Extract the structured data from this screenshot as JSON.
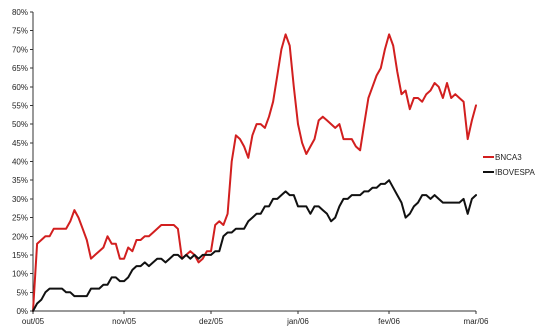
{
  "chart_data": {
    "type": "line",
    "title": "",
    "xlabel": "",
    "ylabel": "",
    "grid": false,
    "legend_position": "right",
    "ylim": [
      0,
      80
    ],
    "y_ticks": [
      "0%",
      "5%",
      "10%",
      "15%",
      "20%",
      "25%",
      "30%",
      "35%",
      "40%",
      "45%",
      "50%",
      "55%",
      "60%",
      "65%",
      "70%",
      "75%",
      "80%"
    ],
    "x_ticks": [
      {
        "label": "out/05",
        "x": 0
      },
      {
        "label": "nov/05",
        "x": 22
      },
      {
        "label": "dez/05",
        "x": 43
      },
      {
        "label": "jan/06",
        "x": 64
      },
      {
        "label": "fev/06",
        "x": 86
      },
      {
        "label": "mar/06",
        "x": 107
      }
    ],
    "xlim": [
      0,
      107
    ],
    "series": [
      {
        "name": "BNCA3",
        "color": "#d21f1f",
        "points": [
          [
            0,
            0
          ],
          [
            1,
            18
          ],
          [
            2,
            19
          ],
          [
            3,
            20
          ],
          [
            4,
            20
          ],
          [
            5,
            22
          ],
          [
            6,
            22
          ],
          [
            7,
            22
          ],
          [
            8,
            22
          ],
          [
            9,
            24
          ],
          [
            10,
            27
          ],
          [
            11,
            25
          ],
          [
            12,
            22
          ],
          [
            13,
            19
          ],
          [
            14,
            14
          ],
          [
            15,
            15
          ],
          [
            16,
            16
          ],
          [
            17,
            17
          ],
          [
            18,
            20
          ],
          [
            19,
            18
          ],
          [
            20,
            18
          ],
          [
            21,
            14
          ],
          [
            22,
            14
          ],
          [
            23,
            17
          ],
          [
            24,
            16
          ],
          [
            25,
            19
          ],
          [
            26,
            19
          ],
          [
            27,
            20
          ],
          [
            28,
            20
          ],
          [
            29,
            21
          ],
          [
            30,
            22
          ],
          [
            31,
            23
          ],
          [
            32,
            23
          ],
          [
            33,
            23
          ],
          [
            34,
            23
          ],
          [
            35,
            22
          ],
          [
            36,
            14
          ],
          [
            37,
            15
          ],
          [
            38,
            16
          ],
          [
            39,
            15
          ],
          [
            40,
            13
          ],
          [
            41,
            14
          ],
          [
            42,
            16
          ],
          [
            43,
            16
          ],
          [
            44,
            23
          ],
          [
            45,
            24
          ],
          [
            46,
            23
          ],
          [
            47,
            26
          ],
          [
            48,
            40
          ],
          [
            49,
            47
          ],
          [
            50,
            46
          ],
          [
            51,
            44
          ],
          [
            52,
            41
          ],
          [
            53,
            47
          ],
          [
            54,
            50
          ],
          [
            55,
            50
          ],
          [
            56,
            49
          ],
          [
            57,
            52
          ],
          [
            58,
            56
          ],
          [
            59,
            63
          ],
          [
            60,
            70
          ],
          [
            61,
            74
          ],
          [
            62,
            71
          ],
          [
            63,
            60
          ],
          [
            64,
            50
          ],
          [
            65,
            45
          ],
          [
            66,
            42
          ],
          [
            67,
            44
          ],
          [
            68,
            46
          ],
          [
            69,
            51
          ],
          [
            70,
            52
          ],
          [
            71,
            51
          ],
          [
            72,
            50
          ],
          [
            73,
            49
          ],
          [
            74,
            50
          ],
          [
            75,
            46
          ],
          [
            76,
            46
          ],
          [
            77,
            46
          ],
          [
            78,
            44
          ],
          [
            79,
            43
          ],
          [
            80,
            50
          ],
          [
            81,
            57
          ],
          [
            82,
            60
          ],
          [
            83,
            63
          ],
          [
            84,
            65
          ],
          [
            85,
            70
          ],
          [
            86,
            74
          ],
          [
            87,
            71
          ],
          [
            88,
            64
          ],
          [
            89,
            58
          ],
          [
            90,
            59
          ],
          [
            91,
            54
          ],
          [
            92,
            57
          ],
          [
            93,
            57
          ],
          [
            94,
            56
          ],
          [
            95,
            58
          ],
          [
            96,
            59
          ],
          [
            97,
            61
          ],
          [
            98,
            60
          ],
          [
            99,
            57
          ],
          [
            100,
            61
          ],
          [
            101,
            57
          ],
          [
            102,
            58
          ],
          [
            103,
            57
          ],
          [
            104,
            56
          ],
          [
            105,
            46
          ],
          [
            106,
            51
          ],
          [
            107,
            55
          ]
        ]
      },
      {
        "name": "IBOVESPA",
        "color": "#111111",
        "points": [
          [
            0,
            0
          ],
          [
            1,
            2
          ],
          [
            2,
            3
          ],
          [
            3,
            5
          ],
          [
            4,
            6
          ],
          [
            5,
            6
          ],
          [
            6,
            6
          ],
          [
            7,
            6
          ],
          [
            8,
            5
          ],
          [
            9,
            5
          ],
          [
            10,
            4
          ],
          [
            11,
            4
          ],
          [
            12,
            4
          ],
          [
            13,
            4
          ],
          [
            14,
            6
          ],
          [
            15,
            6
          ],
          [
            16,
            6
          ],
          [
            17,
            7
          ],
          [
            18,
            7
          ],
          [
            19,
            9
          ],
          [
            20,
            9
          ],
          [
            21,
            8
          ],
          [
            22,
            8
          ],
          [
            23,
            9
          ],
          [
            24,
            11
          ],
          [
            25,
            12
          ],
          [
            26,
            12
          ],
          [
            27,
            13
          ],
          [
            28,
            12
          ],
          [
            29,
            13
          ],
          [
            30,
            14
          ],
          [
            31,
            14
          ],
          [
            32,
            13
          ],
          [
            33,
            14
          ],
          [
            34,
            15
          ],
          [
            35,
            15
          ],
          [
            36,
            14
          ],
          [
            37,
            15
          ],
          [
            38,
            14
          ],
          [
            39,
            15
          ],
          [
            40,
            14
          ],
          [
            41,
            15
          ],
          [
            42,
            15
          ],
          [
            43,
            15
          ],
          [
            44,
            16
          ],
          [
            45,
            16
          ],
          [
            46,
            20
          ],
          [
            47,
            21
          ],
          [
            48,
            21
          ],
          [
            49,
            22
          ],
          [
            50,
            22
          ],
          [
            51,
            22
          ],
          [
            52,
            24
          ],
          [
            53,
            25
          ],
          [
            54,
            26
          ],
          [
            55,
            26
          ],
          [
            56,
            28
          ],
          [
            57,
            28
          ],
          [
            58,
            30
          ],
          [
            59,
            30
          ],
          [
            60,
            31
          ],
          [
            61,
            32
          ],
          [
            62,
            31
          ],
          [
            63,
            31
          ],
          [
            64,
            28
          ],
          [
            65,
            28
          ],
          [
            66,
            28
          ],
          [
            67,
            26
          ],
          [
            68,
            28
          ],
          [
            69,
            28
          ],
          [
            70,
            27
          ],
          [
            71,
            26
          ],
          [
            72,
            24
          ],
          [
            73,
            25
          ],
          [
            74,
            28
          ],
          [
            75,
            30
          ],
          [
            76,
            30
          ],
          [
            77,
            31
          ],
          [
            78,
            31
          ],
          [
            79,
            31
          ],
          [
            80,
            32
          ],
          [
            81,
            32
          ],
          [
            82,
            33
          ],
          [
            83,
            33
          ],
          [
            84,
            34
          ],
          [
            85,
            34
          ],
          [
            86,
            35
          ],
          [
            87,
            33
          ],
          [
            88,
            31
          ],
          [
            89,
            29
          ],
          [
            90,
            25
          ],
          [
            91,
            26
          ],
          [
            92,
            28
          ],
          [
            93,
            29
          ],
          [
            94,
            31
          ],
          [
            95,
            31
          ],
          [
            96,
            30
          ],
          [
            97,
            31
          ],
          [
            98,
            30
          ],
          [
            99,
            29
          ],
          [
            100,
            29
          ],
          [
            101,
            29
          ],
          [
            102,
            29
          ],
          [
            103,
            29
          ],
          [
            104,
            30
          ],
          [
            105,
            26
          ],
          [
            106,
            30
          ],
          [
            107,
            31
          ]
        ]
      }
    ]
  }
}
